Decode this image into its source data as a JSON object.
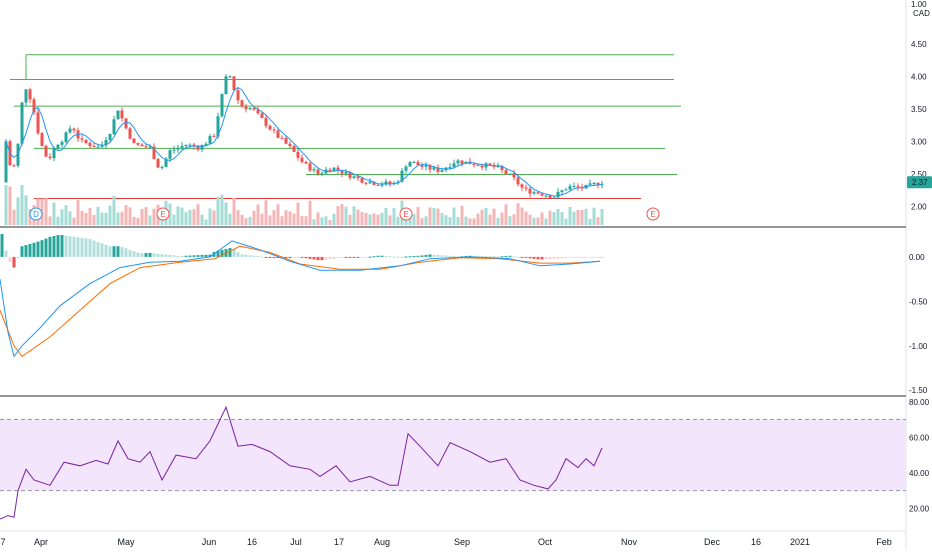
{
  "header": {
    "unit_top": "1.00",
    "currency": "CAD"
  },
  "colors": {
    "up": "#26a69a",
    "down": "#ef5350",
    "ma": "#2196f3",
    "macd_line": "#2196f3",
    "signal_line": "#ff6d00",
    "rsi_line": "#7b1fa2",
    "rsi_band": "#f3e5fc",
    "support_line": "#4caf50",
    "red_line": "#e53935",
    "vol_up": "#a6dcd6",
    "vol_down": "#f4b6b5",
    "hist_up_strong": "#26a69a",
    "hist_up_light": "#b2dfdb",
    "hist_down_strong": "#ef5350",
    "hist_down_light": "#ffcdd2"
  },
  "chart_data": [
    {
      "type": "candlestick",
      "panel": "price",
      "y_ticks": [
        "4.50",
        "4.00",
        "3.50",
        "3.00",
        "2.50",
        "2.00"
      ],
      "ylim": [
        1.82,
        5.05
      ],
      "last_price_label": "2.37",
      "horizontal_levels": [
        {
          "value": 4.33,
          "color": "green"
        },
        {
          "value": 3.95,
          "color": "green"
        },
        {
          "value": 3.54,
          "color": "green"
        },
        {
          "value": 2.89,
          "color": "green"
        },
        {
          "value": 2.49,
          "color": "green"
        },
        {
          "value": 2.12,
          "color": "red"
        }
      ],
      "event_markers": [
        {
          "label": "D",
          "style": "blue"
        },
        {
          "label": "E",
          "style": "red"
        },
        {
          "label": "E",
          "style": "red"
        },
        {
          "label": "E",
          "style": "red"
        }
      ]
    },
    {
      "type": "line",
      "panel": "macd",
      "y_ticks": [
        "0.00",
        "-0.50",
        "-1.00",
        "-1.50"
      ],
      "ylim": [
        -1.52,
        0.28
      ]
    },
    {
      "type": "line",
      "panel": "rsi",
      "y_ticks": [
        "80.00",
        "60.00",
        "40.00",
        "20.00"
      ],
      "ylim": [
        9,
        81
      ],
      "band": [
        30,
        70
      ]
    }
  ],
  "x_axis": {
    "labels": [
      "7",
      "Apr",
      "May",
      "Jun",
      "16",
      "Jul",
      "17",
      "Aug",
      "Sep",
      "Oct",
      "Nov",
      "Dec",
      "16",
      "2021",
      "Feb"
    ]
  }
}
